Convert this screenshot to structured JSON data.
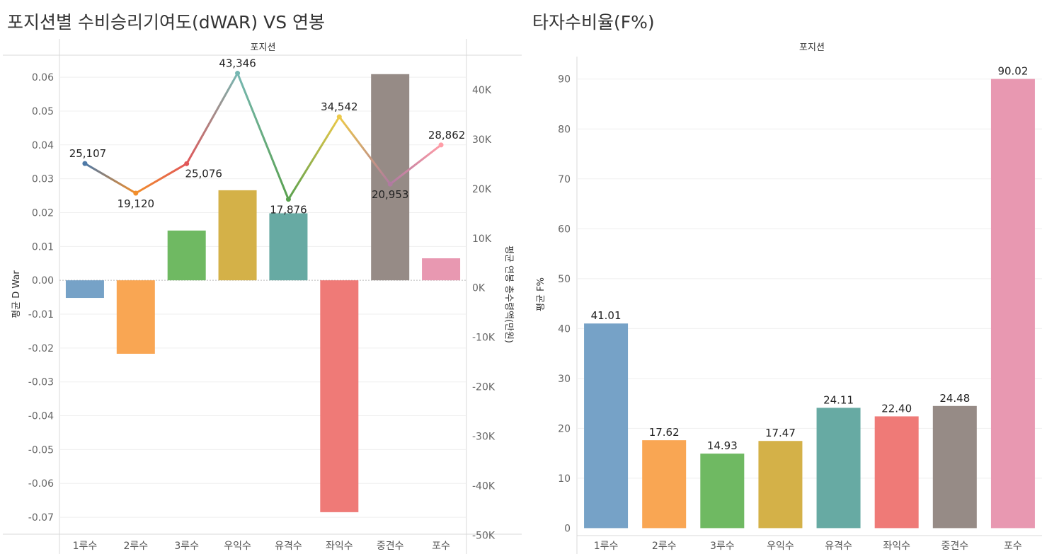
{
  "chart_data": [
    {
      "type": "bar",
      "title": "포지션별 수비승리기여도(dWAR) VS 연봉",
      "header": "포지션",
      "categories": [
        "1루수",
        "2루수",
        "3루수",
        "우익수",
        "유격수",
        "좌익수",
        "중견수",
        "포수"
      ],
      "series": [
        {
          "name": "평균 D War",
          "type": "bar",
          "axis": "left",
          "values": [
            -0.0052,
            -0.0217,
            0.0147,
            0.0266,
            0.0198,
            -0.0685,
            0.0609,
            0.0065
          ]
        },
        {
          "name": "평균 연봉 총수령액(만원)",
          "type": "line",
          "axis": "right",
          "values": [
            25107,
            19120,
            25076,
            43346,
            17876,
            34542,
            20953,
            28862
          ],
          "labels": [
            "25,107",
            "19,120",
            "25,076",
            "43,346",
            "17,876",
            "34,542",
            "20,953",
            "28,862"
          ]
        }
      ],
      "ylabel": "평균 D War",
      "y2label": "평균 연봉 총수령액(만원)",
      "ylim": [
        -0.075,
        0.0665
      ],
      "y2lim": [
        -49800,
        47000
      ],
      "yticks": [
        "0.06",
        "0.05",
        "0.04",
        "0.03",
        "0.02",
        "0.01",
        "0.00",
        "-0.01",
        "-0.02",
        "-0.03",
        "-0.04",
        "-0.05",
        "-0.06",
        "-0.07"
      ],
      "yticks_values": [
        0.06,
        0.05,
        0.04,
        0.03,
        0.02,
        0.01,
        0,
        -0.01,
        -0.02,
        -0.03,
        -0.04,
        -0.05,
        -0.06,
        -0.07
      ],
      "y2ticks": [
        "40K",
        "30K",
        "20K",
        "10K",
        "0K",
        "-10K",
        "-20K",
        "-30K",
        "-40K",
        "-50K"
      ],
      "y2ticks_values": [
        40000,
        30000,
        20000,
        10000,
        0,
        -10000,
        -20000,
        -30000,
        -40000,
        -50000
      ],
      "grid": true,
      "colors": [
        "#76a2c7",
        "#f9a653",
        "#6fb962",
        "#d4b148",
        "#67aaa3",
        "#ef7a77",
        "#968b86",
        "#e898b1"
      ],
      "line_colors": [
        "#4e79a7",
        "#f28e2b",
        "#e15759",
        "#76b7b2",
        "#59a14f",
        "#edc948",
        "#b07aa1",
        "#ff9da7"
      ]
    },
    {
      "type": "bar",
      "title": "타자수비율(F%)",
      "header": "포지션",
      "categories": [
        "1루수",
        "2루수",
        "3루수",
        "우익수",
        "유격수",
        "좌익수",
        "중견수",
        "포수"
      ],
      "series": [
        {
          "name": "평균 F%",
          "values": [
            41.01,
            17.62,
            14.93,
            17.47,
            24.11,
            22.4,
            24.48,
            90.02
          ],
          "labels": [
            "41.01",
            "17.62",
            "14.93",
            "17.47",
            "24.11",
            "22.40",
            "24.48",
            "90.02"
          ]
        }
      ],
      "ylabel": "평균 F%",
      "ylim": [
        -1.5,
        94.5
      ],
      "yticks": [
        "90",
        "80",
        "70",
        "60",
        "50",
        "40",
        "30",
        "20",
        "10",
        "0"
      ],
      "yticks_values": [
        90,
        80,
        70,
        60,
        50,
        40,
        30,
        20,
        10,
        0
      ],
      "grid": true,
      "colors": [
        "#76a2c7",
        "#f9a653",
        "#6fb962",
        "#d4b148",
        "#67aaa3",
        "#ef7a77",
        "#968b86",
        "#e898b1"
      ]
    }
  ]
}
